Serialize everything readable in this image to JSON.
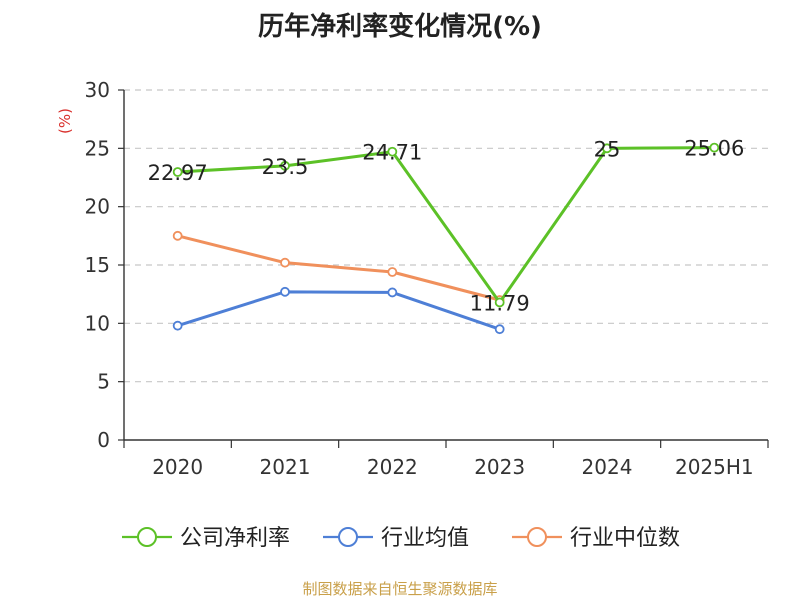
{
  "chart_data": {
    "type": "line",
    "title": "历年净利率变化情况(%)",
    "ylabel": "(%)",
    "xlabel": "",
    "categories": [
      "2020",
      "2021",
      "2022",
      "2023",
      "2024",
      "2025H1"
    ],
    "ylim": [
      0,
      30
    ],
    "yticks": [
      0,
      5,
      10,
      15,
      20,
      25,
      30
    ],
    "grid": true,
    "legend_position": "bottom",
    "series": [
      {
        "name": "公司净利率",
        "color": "#5cc127",
        "values": [
          22.97,
          23.5,
          24.71,
          11.79,
          25,
          25.06
        ],
        "labels": [
          "22.97",
          "23.5",
          "24.71",
          "11.79",
          "25",
          "25.06"
        ]
      },
      {
        "name": "行业均值",
        "color": "#4e7fd6",
        "values": [
          9.8,
          12.7,
          12.65,
          9.5,
          null,
          null
        ]
      },
      {
        "name": "行业中位数",
        "color": "#f0905c",
        "values": [
          17.5,
          15.2,
          14.4,
          12.0,
          null,
          null
        ]
      }
    ]
  },
  "source": "制图数据来自恒生聚源数据库"
}
